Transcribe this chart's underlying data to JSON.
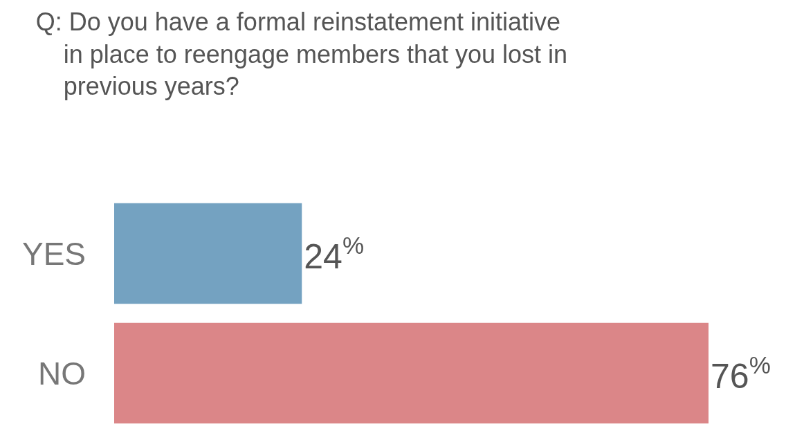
{
  "chart_data": {
    "type": "bar",
    "orientation": "horizontal",
    "title": "Q: Do you have a formal reinstatement initiative\n    in place to reengage members that you lost in\n    previous years?",
    "categories": [
      "YES",
      "NO"
    ],
    "values": [
      24,
      76
    ],
    "colors": [
      "#74a2c1",
      "#db8688"
    ],
    "value_labels": [
      "24$^{%}$",
      "76$^{%}$"
    ]
  }
}
